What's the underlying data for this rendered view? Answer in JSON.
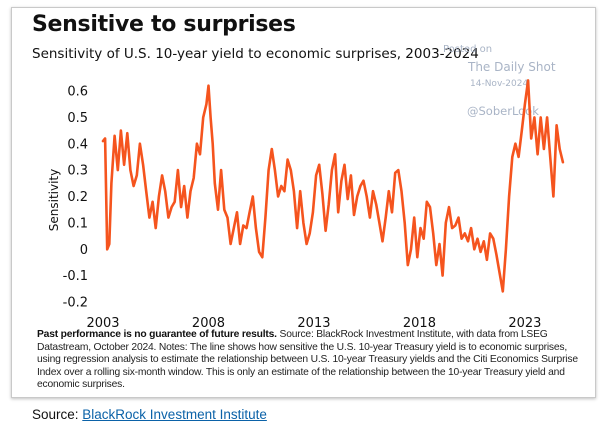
{
  "header": {
    "title": "Sensitive to surprises",
    "subtitle": "Sensitivity of U.S. 10-year yield to economic surprises, 2003-2024"
  },
  "watermark": {
    "posted_on": "Posted on",
    "site": "The Daily Shot",
    "date": "14-Nov-2024",
    "handle": "@SoberLook"
  },
  "chart_data": {
    "type": "line",
    "title": "Sensitive to surprises",
    "subtitle": "Sensitivity of U.S. 10-year yield to economic surprises, 2003-2024",
    "xlabel": "",
    "ylabel": "Sensitivity",
    "xlim": [
      2003.0,
      2024.9
    ],
    "ylim": [
      -0.2,
      0.65
    ],
    "yticks": [
      0.6,
      0.5,
      0.4,
      0.3,
      0.2,
      0.1,
      0,
      -0.1,
      -0.2
    ],
    "ytick_labels": [
      "0.6",
      "0.5",
      "0.4",
      "0.3",
      "0.2",
      "0.1",
      "0",
      "-0.1",
      "-0.2"
    ],
    "xticks": [
      2003,
      2008,
      2013,
      2018,
      2023
    ],
    "xtick_labels": [
      "2003",
      "2008",
      "2013",
      "2018",
      "2023"
    ],
    "grid": false,
    "color": "#f5541e",
    "series": [
      {
        "name": "Sensitivity",
        "x": [
          2003.0,
          2003.1,
          2003.2,
          2003.3,
          2003.4,
          2003.55,
          2003.7,
          2003.85,
          2004.0,
          2004.15,
          2004.3,
          2004.45,
          2004.6,
          2004.75,
          2004.9,
          2005.05,
          2005.2,
          2005.35,
          2005.5,
          2005.65,
          2005.8,
          2005.95,
          2006.1,
          2006.25,
          2006.4,
          2006.55,
          2006.7,
          2006.85,
          2007.0,
          2007.15,
          2007.3,
          2007.45,
          2007.6,
          2007.75,
          2007.9,
          2008.0,
          2008.1,
          2008.2,
          2008.3,
          2008.45,
          2008.6,
          2008.75,
          2008.9,
          2009.05,
          2009.2,
          2009.35,
          2009.5,
          2009.65,
          2009.8,
          2009.95,
          2010.1,
          2010.25,
          2010.4,
          2010.55,
          2010.7,
          2010.85,
          2011.0,
          2011.15,
          2011.3,
          2011.45,
          2011.6,
          2011.75,
          2011.9,
          2012.05,
          2012.2,
          2012.35,
          2012.5,
          2012.65,
          2012.8,
          2012.95,
          2013.1,
          2013.25,
          2013.4,
          2013.55,
          2013.7,
          2013.85,
          2014.0,
          2014.15,
          2014.3,
          2014.45,
          2014.6,
          2014.75,
          2014.9,
          2015.05,
          2015.2,
          2015.35,
          2015.5,
          2015.65,
          2015.8,
          2015.95,
          2016.1,
          2016.25,
          2016.4,
          2016.55,
          2016.7,
          2016.85,
          2017.0,
          2017.15,
          2017.3,
          2017.45,
          2017.6,
          2017.75,
          2017.9,
          2018.05,
          2018.2,
          2018.35,
          2018.5,
          2018.65,
          2018.8,
          2018.95,
          2019.1,
          2019.25,
          2019.4,
          2019.55,
          2019.7,
          2019.85,
          2020.0,
          2020.15,
          2020.3,
          2020.45,
          2020.6,
          2020.75,
          2020.9,
          2021.05,
          2021.2,
          2021.35,
          2021.5,
          2021.65,
          2021.8,
          2021.95,
          2022.1,
          2022.25,
          2022.4,
          2022.55,
          2022.7,
          2022.85,
          2023.0,
          2023.15,
          2023.3,
          2023.45,
          2023.6,
          2023.75,
          2023.9,
          2024.05,
          2024.2,
          2024.35,
          2024.5,
          2024.65,
          2024.8
        ],
        "values": [
          0.41,
          0.42,
          0.0,
          0.02,
          0.25,
          0.43,
          0.3,
          0.45,
          0.32,
          0.44,
          0.3,
          0.24,
          0.28,
          0.4,
          0.32,
          0.22,
          0.12,
          0.18,
          0.08,
          0.2,
          0.28,
          0.22,
          0.12,
          0.16,
          0.18,
          0.3,
          0.16,
          0.24,
          0.12,
          0.22,
          0.27,
          0.4,
          0.36,
          0.5,
          0.55,
          0.62,
          0.5,
          0.4,
          0.25,
          0.15,
          0.3,
          0.15,
          0.12,
          0.02,
          0.08,
          0.14,
          0.02,
          0.09,
          0.08,
          0.14,
          0.2,
          0.08,
          -0.01,
          -0.03,
          0.12,
          0.3,
          0.38,
          0.3,
          0.2,
          0.24,
          0.22,
          0.34,
          0.3,
          0.22,
          0.08,
          0.22,
          0.1,
          0.02,
          0.06,
          0.14,
          0.28,
          0.32,
          0.21,
          0.07,
          0.17,
          0.3,
          0.36,
          0.14,
          0.26,
          0.32,
          0.19,
          0.28,
          0.13,
          0.2,
          0.24,
          0.26,
          0.2,
          0.12,
          0.22,
          0.17,
          0.1,
          0.03,
          0.12,
          0.22,
          0.14,
          0.29,
          0.3,
          0.22,
          0.1,
          -0.06,
          0.0,
          0.12,
          -0.03,
          0.08,
          0.04,
          0.18,
          0.16,
          0.06,
          -0.06,
          0.02,
          -0.1,
          0.1,
          0.16,
          0.08,
          0.09,
          0.12,
          0.04,
          0.06,
          0.03,
          0.08,
          0.0,
          0.04,
          -0.01,
          0.03,
          -0.04,
          0.06,
          0.04,
          -0.02,
          -0.09,
          -0.16,
          0.0,
          0.2,
          0.35,
          0.4,
          0.35,
          0.45,
          0.55,
          0.64,
          0.42,
          0.5,
          0.36,
          0.5,
          0.38,
          0.5,
          0.35,
          0.2,
          0.47,
          0.38,
          0.33
        ]
      }
    ]
  },
  "notes": {
    "bold": "Past performance is no guarantee of future results.",
    "text": " Source: BlackRock Investment Institute, with data from LSEG Datastream, October 2024. Notes: The line shows how sensitive the U.S. 10-year Treasury yield is to economic surprises, using regression analysis to estimate the relationship between U.S. 10-year Treasury yields and the Citi Economics Surprise Index over a rolling six-month window. This is only an estimate of the relationship between the 10-year Treasury yield and economic surprises."
  },
  "footer": {
    "source_label": "Source: ",
    "source_link": "BlackRock Investment Institute"
  }
}
